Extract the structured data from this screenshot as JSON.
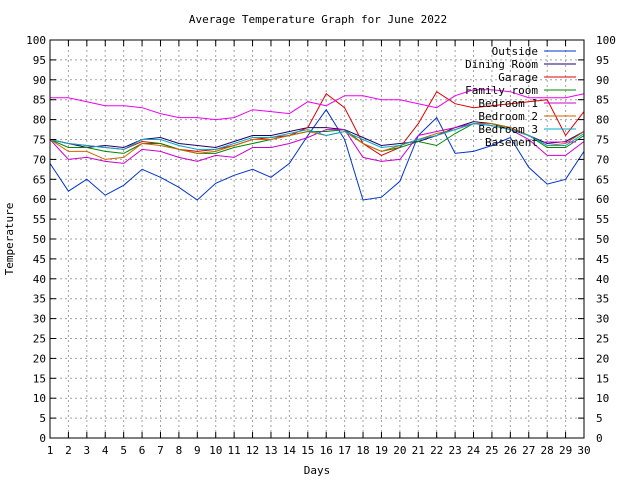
{
  "chart_data": {
    "type": "line",
    "title": "Average Temperature Graph for June 2022",
    "xlabel": "Days",
    "ylabel": "Temperature",
    "xlim": [
      1,
      30
    ],
    "ylim": [
      0,
      100
    ],
    "x": [
      1,
      2,
      3,
      4,
      5,
      6,
      7,
      8,
      9,
      10,
      11,
      12,
      13,
      14,
      15,
      16,
      17,
      18,
      19,
      20,
      21,
      22,
      23,
      24,
      25,
      26,
      27,
      28,
      29,
      30
    ],
    "x_ticks": [
      "1",
      "2",
      "3",
      "4",
      "5",
      "6",
      "7",
      "8",
      "9",
      "10",
      "11",
      "12",
      "13",
      "14",
      "15",
      "16",
      "17",
      "18",
      "19",
      "20",
      "21",
      "22",
      "23",
      "24",
      "25",
      "26",
      "27",
      "28",
      "29",
      "30"
    ],
    "y_ticks": [
      "0",
      "5",
      "10",
      "15",
      "20",
      "25",
      "30",
      "35",
      "40",
      "45",
      "50",
      "55",
      "60",
      "65",
      "70",
      "75",
      "80",
      "85",
      "90",
      "95",
      "100"
    ],
    "grid": true,
    "legend_position": "top-right",
    "series": [
      {
        "name": "Outside",
        "color": "#0033cc",
        "values": [
          69,
          62,
          65,
          61,
          63.5,
          67.5,
          65.5,
          63,
          59.8,
          64,
          66,
          67.5,
          65.5,
          69,
          76,
          82.5,
          75,
          59.8,
          60.5,
          64.5,
          76,
          80.5,
          71.5,
          72,
          73.5,
          75.5,
          68,
          63.8,
          65,
          72
        ]
      },
      {
        "name": "Dining Room",
        "color": "#220066",
        "values": [
          75,
          74,
          73,
          73.5,
          73,
          75,
          75.5,
          74,
          73.5,
          73,
          74.5,
          76,
          76,
          77,
          78,
          78,
          77.5,
          75.5,
          73.5,
          74,
          74.5,
          76,
          78,
          79.5,
          79,
          78,
          76,
          74,
          74.5,
          77
        ]
      },
      {
        "name": "Garage",
        "color": "#dd0000",
        "values": [
          75,
          74,
          73.5,
          73,
          72.5,
          74.5,
          74,
          72.5,
          72,
          72.5,
          73.5,
          75,
          75.5,
          76,
          78,
          86.5,
          83,
          74,
          71,
          73,
          79,
          87,
          84,
          83,
          83.5,
          84,
          84.5,
          85,
          76,
          82
        ]
      },
      {
        "name": "Family room",
        "color": "#008800",
        "values": [
          75,
          73,
          73,
          72,
          71.5,
          74,
          74,
          72.5,
          71.5,
          71.5,
          73,
          74,
          75,
          76,
          77,
          77,
          77.5,
          74,
          72,
          73,
          74.5,
          73.5,
          76.5,
          79,
          79,
          77.5,
          76,
          73,
          73,
          76
        ]
      },
      {
        "name": "Bedroom 1",
        "color": "#cc00cc",
        "values": [
          75,
          70,
          70.5,
          69.5,
          69,
          72.5,
          72,
          70.5,
          69.5,
          71,
          70.5,
          73,
          73,
          74,
          75.5,
          77.5,
          77.5,
          70.5,
          69.5,
          70,
          76,
          77,
          78,
          79,
          78.5,
          77.5,
          75,
          71,
          71,
          74.5
        ]
      },
      {
        "name": "Bedroom 2",
        "color": "#cc6600",
        "values": [
          75,
          72,
          72,
          70,
          70.5,
          74,
          73.5,
          72.5,
          71.5,
          72,
          73.5,
          75,
          75,
          76,
          77,
          76,
          77,
          74,
          72,
          73.5,
          75,
          76.5,
          77.5,
          79,
          79,
          78,
          76,
          73.5,
          74,
          77
        ]
      },
      {
        "name": "Bedroom 3",
        "color": "#00aacc",
        "values": [
          75,
          74,
          73.5,
          73,
          72.5,
          75,
          75,
          73.5,
          72.5,
          72.5,
          74,
          75.5,
          75.5,
          76.5,
          77.5,
          76,
          77,
          75,
          73,
          73.5,
          75,
          76,
          77.5,
          79,
          78.5,
          77.5,
          76,
          73.5,
          73.5,
          76.5
        ]
      },
      {
        "name": "Basement",
        "color": "#ee00ee",
        "values": [
          85.5,
          85.5,
          84.5,
          83.5,
          83.5,
          83,
          81.5,
          80.5,
          80.5,
          80,
          80.5,
          82.5,
          82,
          81.5,
          84.5,
          83.5,
          86,
          86,
          85,
          85,
          84,
          83,
          86,
          87.5,
          87.5,
          87,
          85.5,
          85.5,
          85.5,
          86.5
        ]
      }
    ]
  }
}
